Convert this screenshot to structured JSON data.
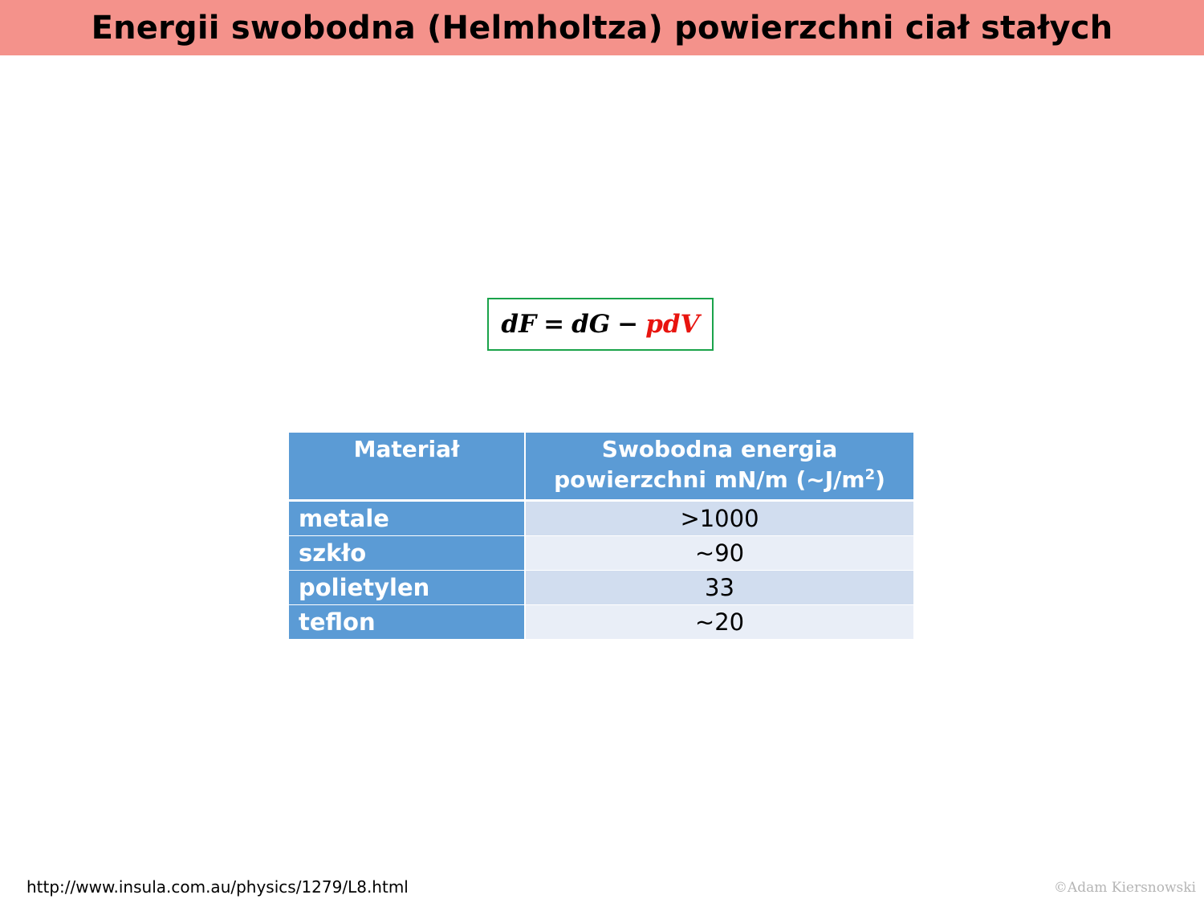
{
  "slide": {
    "title": "Energii swobodna (Helmholtza) powierzchni ciał stałych"
  },
  "formula": {
    "lhs": "dF",
    "equals": "=",
    "term1": "dG",
    "minus": "−",
    "term2": "pdV"
  },
  "table": {
    "header": {
      "col1": "Materiał",
      "col2_line1": "Swobodna energia",
      "col2_line2_prefix": "powierzchni mN/m (~J/m",
      "col2_line2_sup": "2",
      "col2_line2_suffix": ")"
    },
    "rows": [
      {
        "material": "metale",
        "value": ">1000"
      },
      {
        "material": "szkło",
        "value": "~90"
      },
      {
        "material": "polietylen",
        "value": "33"
      },
      {
        "material": "teflon",
        "value": "~20"
      }
    ]
  },
  "footer": {
    "source_url": "http://www.insula.com.au/physics/1279/L8.html",
    "copyright": "©Adam Kiersnowski"
  },
  "colors": {
    "title_bar": "#f4928b",
    "formula_border": "#1aa34a",
    "formula_highlight": "#e8140f",
    "table_header": "#5b9bd5",
    "row_band_a": "#d1ddef",
    "row_band_b": "#e9eef7"
  }
}
